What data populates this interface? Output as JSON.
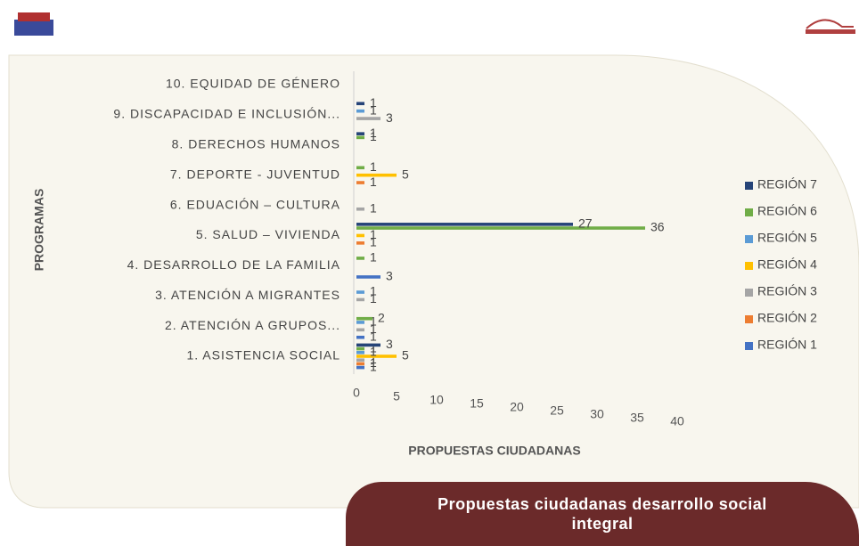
{
  "chart_data": {
    "type": "bar",
    "orientation": "horizontal",
    "y_label": "PROGRAMAS",
    "x_label": "PROPUESTAS CIUDADANAS",
    "categories": [
      "1.  ASISTENCIA SOCIAL",
      "2.   ATENCIÓN   A GRUPOS...",
      "3.  ATENCIÓN A MIGRANTES",
      "4.  DESARROLLO DE LA FAMILIA",
      "5.   SALUD  – VIVIENDA",
      "6.   EDUACIÓN  – CULTURA",
      "7.  DEPORTE - JUVENTUD",
      "8.  DERECHOS HUMANOS",
      "9.   DISCAPACIDAD   E INCLUSIÓN...",
      "10. EQUIDAD DE GÉNERO"
    ],
    "series": [
      {
        "name": "REGIÓN 1",
        "color": "#4472c4",
        "values": [
          1,
          1,
          null,
          3,
          null,
          null,
          null,
          null,
          null,
          null
        ]
      },
      {
        "name": "REGIÓN 2",
        "color": "#ed7d31",
        "values": [
          1,
          null,
          null,
          null,
          1,
          null,
          1,
          null,
          null,
          null
        ]
      },
      {
        "name": "REGIÓN 3",
        "color": "#a5a5a5",
        "values": [
          1,
          1,
          1,
          null,
          null,
          1,
          null,
          null,
          3,
          null
        ]
      },
      {
        "name": "REGIÓN 4",
        "color": "#ffc000",
        "values": [
          5,
          null,
          null,
          null,
          1,
          null,
          5,
          null,
          null,
          null
        ]
      },
      {
        "name": "REGIÓN 5",
        "color": "#5b9bd5",
        "values": [
          1,
          1,
          1,
          null,
          null,
          null,
          null,
          null,
          1,
          null
        ]
      },
      {
        "name": "REGIÓN 6",
        "color": "#70ad47",
        "values": [
          1,
          2,
          null,
          1,
          36,
          null,
          1,
          1,
          null,
          null
        ]
      },
      {
        "name": "REGIÓN 7",
        "color": "#264478",
        "values": [
          3,
          null,
          null,
          null,
          27,
          null,
          null,
          1,
          1,
          null
        ]
      }
    ],
    "xlim": [
      0,
      40
    ],
    "xticks": [
      0,
      5,
      10,
      15,
      20,
      25,
      30,
      35,
      40
    ],
    "grid": false,
    "legend": "right"
  },
  "banner": "Propuestas ciudadanas desarrollo social integral"
}
